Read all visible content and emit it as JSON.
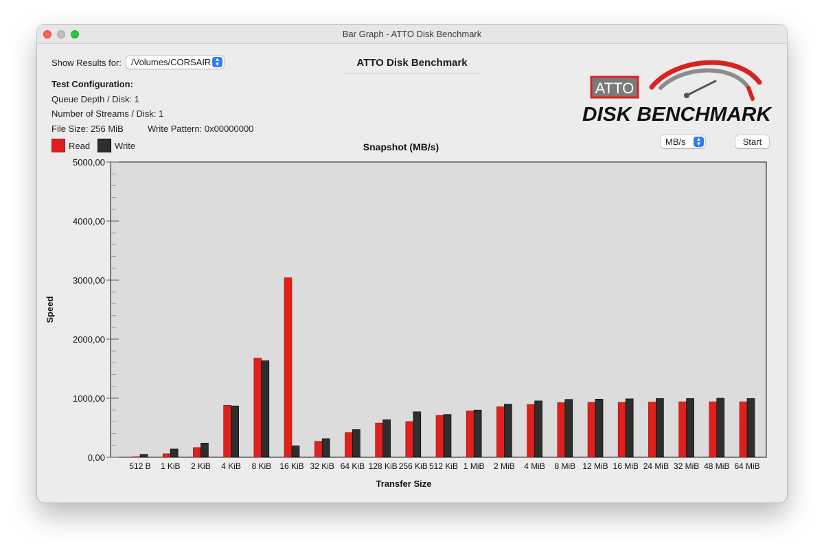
{
  "window": {
    "title": "Bar Graph - ATTO Disk Benchmark"
  },
  "header": {
    "show_results_label": "Show Results for:",
    "volume_value": "/Volumes/CORSAIR",
    "app_title": "ATTO Disk Benchmark"
  },
  "config": {
    "heading": "Test Configuration:",
    "queue_depth": "Queue Depth / Disk: 1",
    "streams": "Number of Streams / Disk: 1",
    "file_size": "File Size: 256 MiB",
    "write_pattern": "Write Pattern: 0x00000000"
  },
  "logo": {
    "badge_text": "ATTO",
    "wordmark": "DISK BENCHMARK"
  },
  "controls": {
    "unit_value": "MB/s",
    "start_label": "Start"
  },
  "legend": {
    "read_label": "Read",
    "write_label": "Write"
  },
  "colors": {
    "read": "#e0201c",
    "write": "#2e2e2e",
    "plot_bg": "#dcdcdc",
    "accent": "#2f7cf6"
  },
  "chart_data": {
    "type": "bar",
    "title": "Snapshot (MB/s)",
    "xlabel": "Transfer Size",
    "ylabel": "Speed",
    "ylim": [
      0,
      5000
    ],
    "yticks": [
      0,
      1000,
      2000,
      3000,
      4000,
      5000
    ],
    "ytick_labels": [
      "0,00",
      "1000,00",
      "2000,00",
      "3000,00",
      "4000,00",
      "5000,00"
    ],
    "grid": false,
    "legend_position": "top-left",
    "categories": [
      "512 B",
      "1 KiB",
      "2 KiB",
      "4 KiB",
      "8 KiB",
      "16 KiB",
      "32 KiB",
      "64 KiB",
      "128 KiB",
      "256 KiB",
      "512 KiB",
      "1 MiB",
      "2 MiB",
      "4 MiB",
      "8 MiB",
      "12 MiB",
      "16 MiB",
      "24 MiB",
      "32 MiB",
      "48 MiB",
      "64 MiB"
    ],
    "series": [
      {
        "name": "Read",
        "values": [
          10,
          60,
          165,
          880,
          1680,
          3040,
          270,
          420,
          580,
          605,
          710,
          785,
          855,
          895,
          925,
          930,
          930,
          935,
          940,
          940,
          940
        ]
      },
      {
        "name": "Write",
        "values": [
          50,
          140,
          240,
          870,
          1635,
          195,
          315,
          470,
          635,
          770,
          725,
          800,
          900,
          955,
          980,
          985,
          990,
          995,
          995,
          1000,
          995
        ]
      }
    ]
  }
}
